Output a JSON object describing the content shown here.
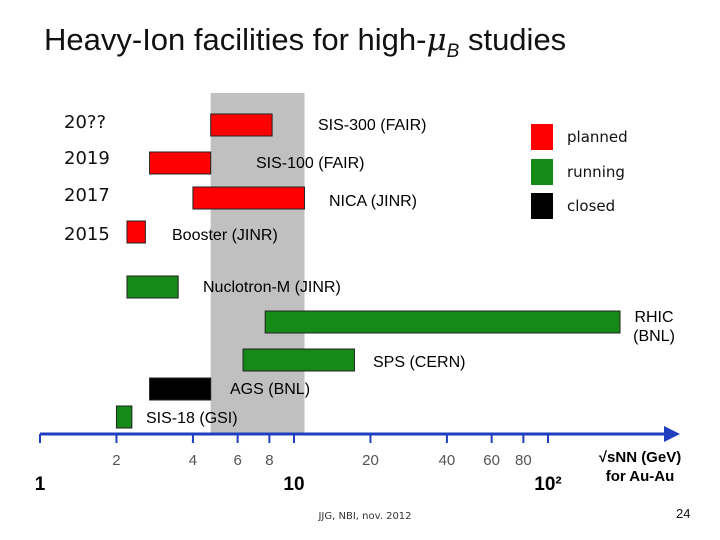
{
  "slide": {
    "title_main": "Heavy-Ion facilities for high-",
    "title_symbol": "μ",
    "title_sub": "B",
    "title_tail": " studies",
    "credit": "JJG, NBI, nov. 2012",
    "page_number": "24"
  },
  "chart_data": {
    "type": "bar",
    "orientation": "horizontal",
    "x_scale": "log",
    "xlabel_line1": "√sNN (GeV)",
    "xlabel_line2": "for Au-Au",
    "x_ticks": [
      {
        "value": 1,
        "label": "1",
        "style": "bold"
      },
      {
        "value": 2,
        "label": "2",
        "style": "small"
      },
      {
        "value": 4,
        "label": "4",
        "style": "small"
      },
      {
        "value": 6,
        "label": "6",
        "style": "small"
      },
      {
        "value": 8,
        "label": "8",
        "style": "small"
      },
      {
        "value": 10,
        "label": "10",
        "style": "bold"
      },
      {
        "value": 20,
        "label": "20",
        "style": "small"
      },
      {
        "value": 40,
        "label": "40",
        "style": "small"
      },
      {
        "value": 60,
        "label": "60",
        "style": "small"
      },
      {
        "value": 80,
        "label": "80",
        "style": "small"
      },
      {
        "value": 100,
        "label": "10²",
        "style": "bold"
      }
    ],
    "highlight_range": [
      4.7,
      11
    ],
    "year_labels": [
      "20??",
      "2019",
      "2017",
      "2015"
    ],
    "legend": [
      {
        "status": "planned",
        "label": "planned",
        "color": "#ff0000"
      },
      {
        "status": "running",
        "label": "running",
        "color": "#168a16"
      },
      {
        "status": "closed",
        "label": "closed",
        "color": "#000000"
      }
    ],
    "facilities": [
      {
        "name": "SIS-300 (FAIR)",
        "x_min": 4.7,
        "x_max": 8.2,
        "status": "planned",
        "year": "20??"
      },
      {
        "name": "SIS-100 (FAIR)",
        "x_min": 2.7,
        "x_max": 4.7,
        "status": "planned",
        "year": "2019"
      },
      {
        "name": "NICA (JINR)",
        "x_min": 4.0,
        "x_max": 11.0,
        "status": "planned",
        "year": "2017"
      },
      {
        "name": "Booster (JINR)",
        "x_min": 2.2,
        "x_max": 2.6,
        "status": "planned",
        "year": "2015"
      },
      {
        "name": "Nuclotron-M (JINR)",
        "x_min": 2.2,
        "x_max": 3.5,
        "status": "running"
      },
      {
        "name": "RHIC (BNL)",
        "x_min": 7.7,
        "x_max": 200,
        "status": "running"
      },
      {
        "name": "SPS (CERN)",
        "x_min": 6.3,
        "x_max": 17.3,
        "status": "running"
      },
      {
        "name": "AGS (BNL)",
        "x_min": 2.7,
        "x_max": 4.7,
        "status": "closed"
      },
      {
        "name": "SIS-18 (GSI)",
        "x_min": 2.0,
        "x_max": 2.3,
        "status": "running"
      }
    ]
  }
}
